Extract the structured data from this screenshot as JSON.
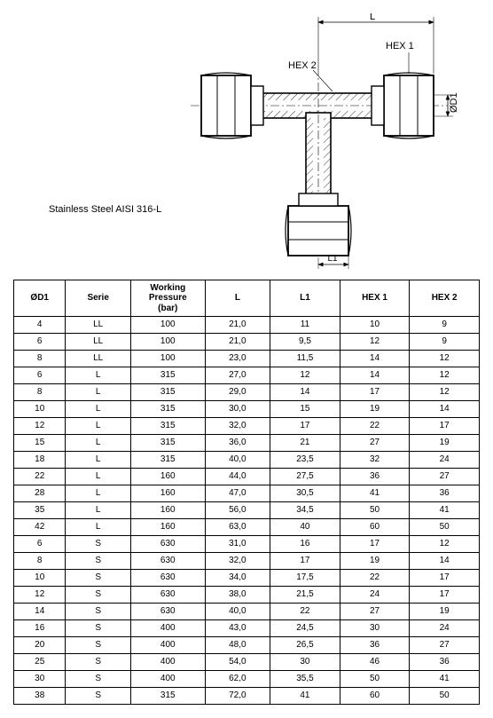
{
  "material_label": "Stainless Steel AISI 316-L",
  "diagram_labels": {
    "L": "L",
    "L1": "L1",
    "HEX1": "HEX 1",
    "HEX2": "HEX 2",
    "OD1": "ØD1"
  },
  "table": {
    "columns": [
      "ØD1",
      "Serie",
      "Working Pressure (bar)",
      "L",
      "L1",
      "HEX 1",
      "HEX 2"
    ],
    "col_widths_pct": [
      11,
      14,
      16,
      14,
      15,
      15,
      15
    ],
    "rows": [
      [
        "4",
        "LL",
        "100",
        "21,0",
        "11",
        "10",
        "9"
      ],
      [
        "6",
        "LL",
        "100",
        "21,0",
        "9,5",
        "12",
        "9"
      ],
      [
        "8",
        "LL",
        "100",
        "23,0",
        "11,5",
        "14",
        "12"
      ],
      [
        "6",
        "L",
        "315",
        "27,0",
        "12",
        "14",
        "12"
      ],
      [
        "8",
        "L",
        "315",
        "29,0",
        "14",
        "17",
        "12"
      ],
      [
        "10",
        "L",
        "315",
        "30,0",
        "15",
        "19",
        "14"
      ],
      [
        "12",
        "L",
        "315",
        "32,0",
        "17",
        "22",
        "17"
      ],
      [
        "15",
        "L",
        "315",
        "36,0",
        "21",
        "27",
        "19"
      ],
      [
        "18",
        "L",
        "315",
        "40,0",
        "23,5",
        "32",
        "24"
      ],
      [
        "22",
        "L",
        "160",
        "44,0",
        "27,5",
        "36",
        "27"
      ],
      [
        "28",
        "L",
        "160",
        "47,0",
        "30,5",
        "41",
        "36"
      ],
      [
        "35",
        "L",
        "160",
        "56,0",
        "34,5",
        "50",
        "41"
      ],
      [
        "42",
        "L",
        "160",
        "63,0",
        "40",
        "60",
        "50"
      ],
      [
        "6",
        "S",
        "630",
        "31,0",
        "16",
        "17",
        "12"
      ],
      [
        "8",
        "S",
        "630",
        "32,0",
        "17",
        "19",
        "14"
      ],
      [
        "10",
        "S",
        "630",
        "34,0",
        "17,5",
        "22",
        "17"
      ],
      [
        "12",
        "S",
        "630",
        "38,0",
        "21,5",
        "24",
        "17"
      ],
      [
        "14",
        "S",
        "630",
        "40,0",
        "22",
        "27",
        "19"
      ],
      [
        "16",
        "S",
        "400",
        "43,0",
        "24,5",
        "30",
        "24"
      ],
      [
        "20",
        "S",
        "400",
        "48,0",
        "26,5",
        "36",
        "27"
      ],
      [
        "25",
        "S",
        "400",
        "54,0",
        "30",
        "46",
        "36"
      ],
      [
        "30",
        "S",
        "400",
        "62,0",
        "35,5",
        "50",
        "41"
      ],
      [
        "38",
        "S",
        "315",
        "72,0",
        "41",
        "60",
        "50"
      ]
    ]
  },
  "styling": {
    "font_family": "Arial, Verdana, sans-serif",
    "header_fontsize": 10,
    "cell_fontsize": 10,
    "border_color": "#000000",
    "background_color": "#ffffff",
    "material_fontsize": 11,
    "diagram_line_color": "#000000",
    "diagram_fill_color": "#ffffff",
    "diagram_hatch_color": "#000000"
  }
}
